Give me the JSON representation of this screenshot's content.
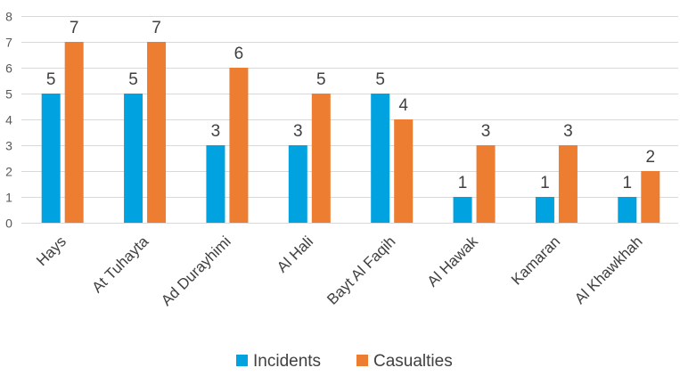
{
  "chart_data": {
    "type": "bar",
    "categories": [
      "Hays",
      "At Tuhayta",
      "Ad Durayhimi",
      "Al Hali",
      "Bayt Al Faqih",
      "Al Hawak",
      "Kamaran",
      "Al Khawkhah"
    ],
    "series": [
      {
        "name": "Incidents",
        "values": [
          5,
          5,
          3,
          3,
          5,
          1,
          1,
          1
        ],
        "color": "#00a2e0"
      },
      {
        "name": "Casualties",
        "values": [
          7,
          7,
          6,
          5,
          4,
          3,
          3,
          2
        ],
        "color": "#ed7d31"
      }
    ],
    "ylim": [
      0,
      8
    ],
    "yticks": [
      0,
      1,
      2,
      3,
      4,
      5,
      6,
      7,
      8
    ],
    "grid": true,
    "legend_position": "bottom",
    "title": "",
    "xlabel": "",
    "ylabel": ""
  }
}
